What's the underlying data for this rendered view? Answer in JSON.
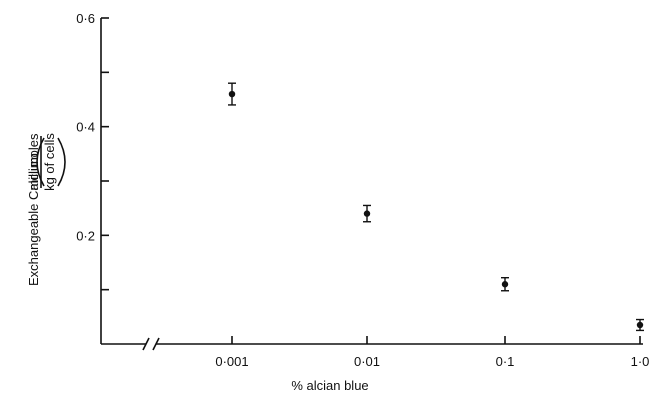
{
  "chart_data": {
    "type": "scatter",
    "xscale": "log",
    "x_tick_labels": [
      "0·001",
      "0·01",
      "0·1",
      "1·0"
    ],
    "y_tick_labels": [
      "0·2",
      "0·4",
      "0·6"
    ],
    "y_ticks": [
      0.1,
      0.2,
      0.3,
      0.4,
      0.5,
      0.6
    ],
    "ylim": [
      0,
      0.6
    ],
    "xlabel": "% alcian blue",
    "ylabel_main": "Exchangeable Calcium",
    "ylabel_unit_numerator": "millimoles",
    "ylabel_unit_denominator": "kg of cells",
    "axis_break": true,
    "grid": false,
    "points": [
      {
        "x": "0·001",
        "y": 0.46,
        "err": 0.02
      },
      {
        "x": "0·01",
        "y": 0.24,
        "err": 0.015
      },
      {
        "x": "0·1",
        "y": 0.11,
        "err": 0.012
      },
      {
        "x": "1·0",
        "y": 0.035,
        "err": 0.01
      }
    ]
  }
}
